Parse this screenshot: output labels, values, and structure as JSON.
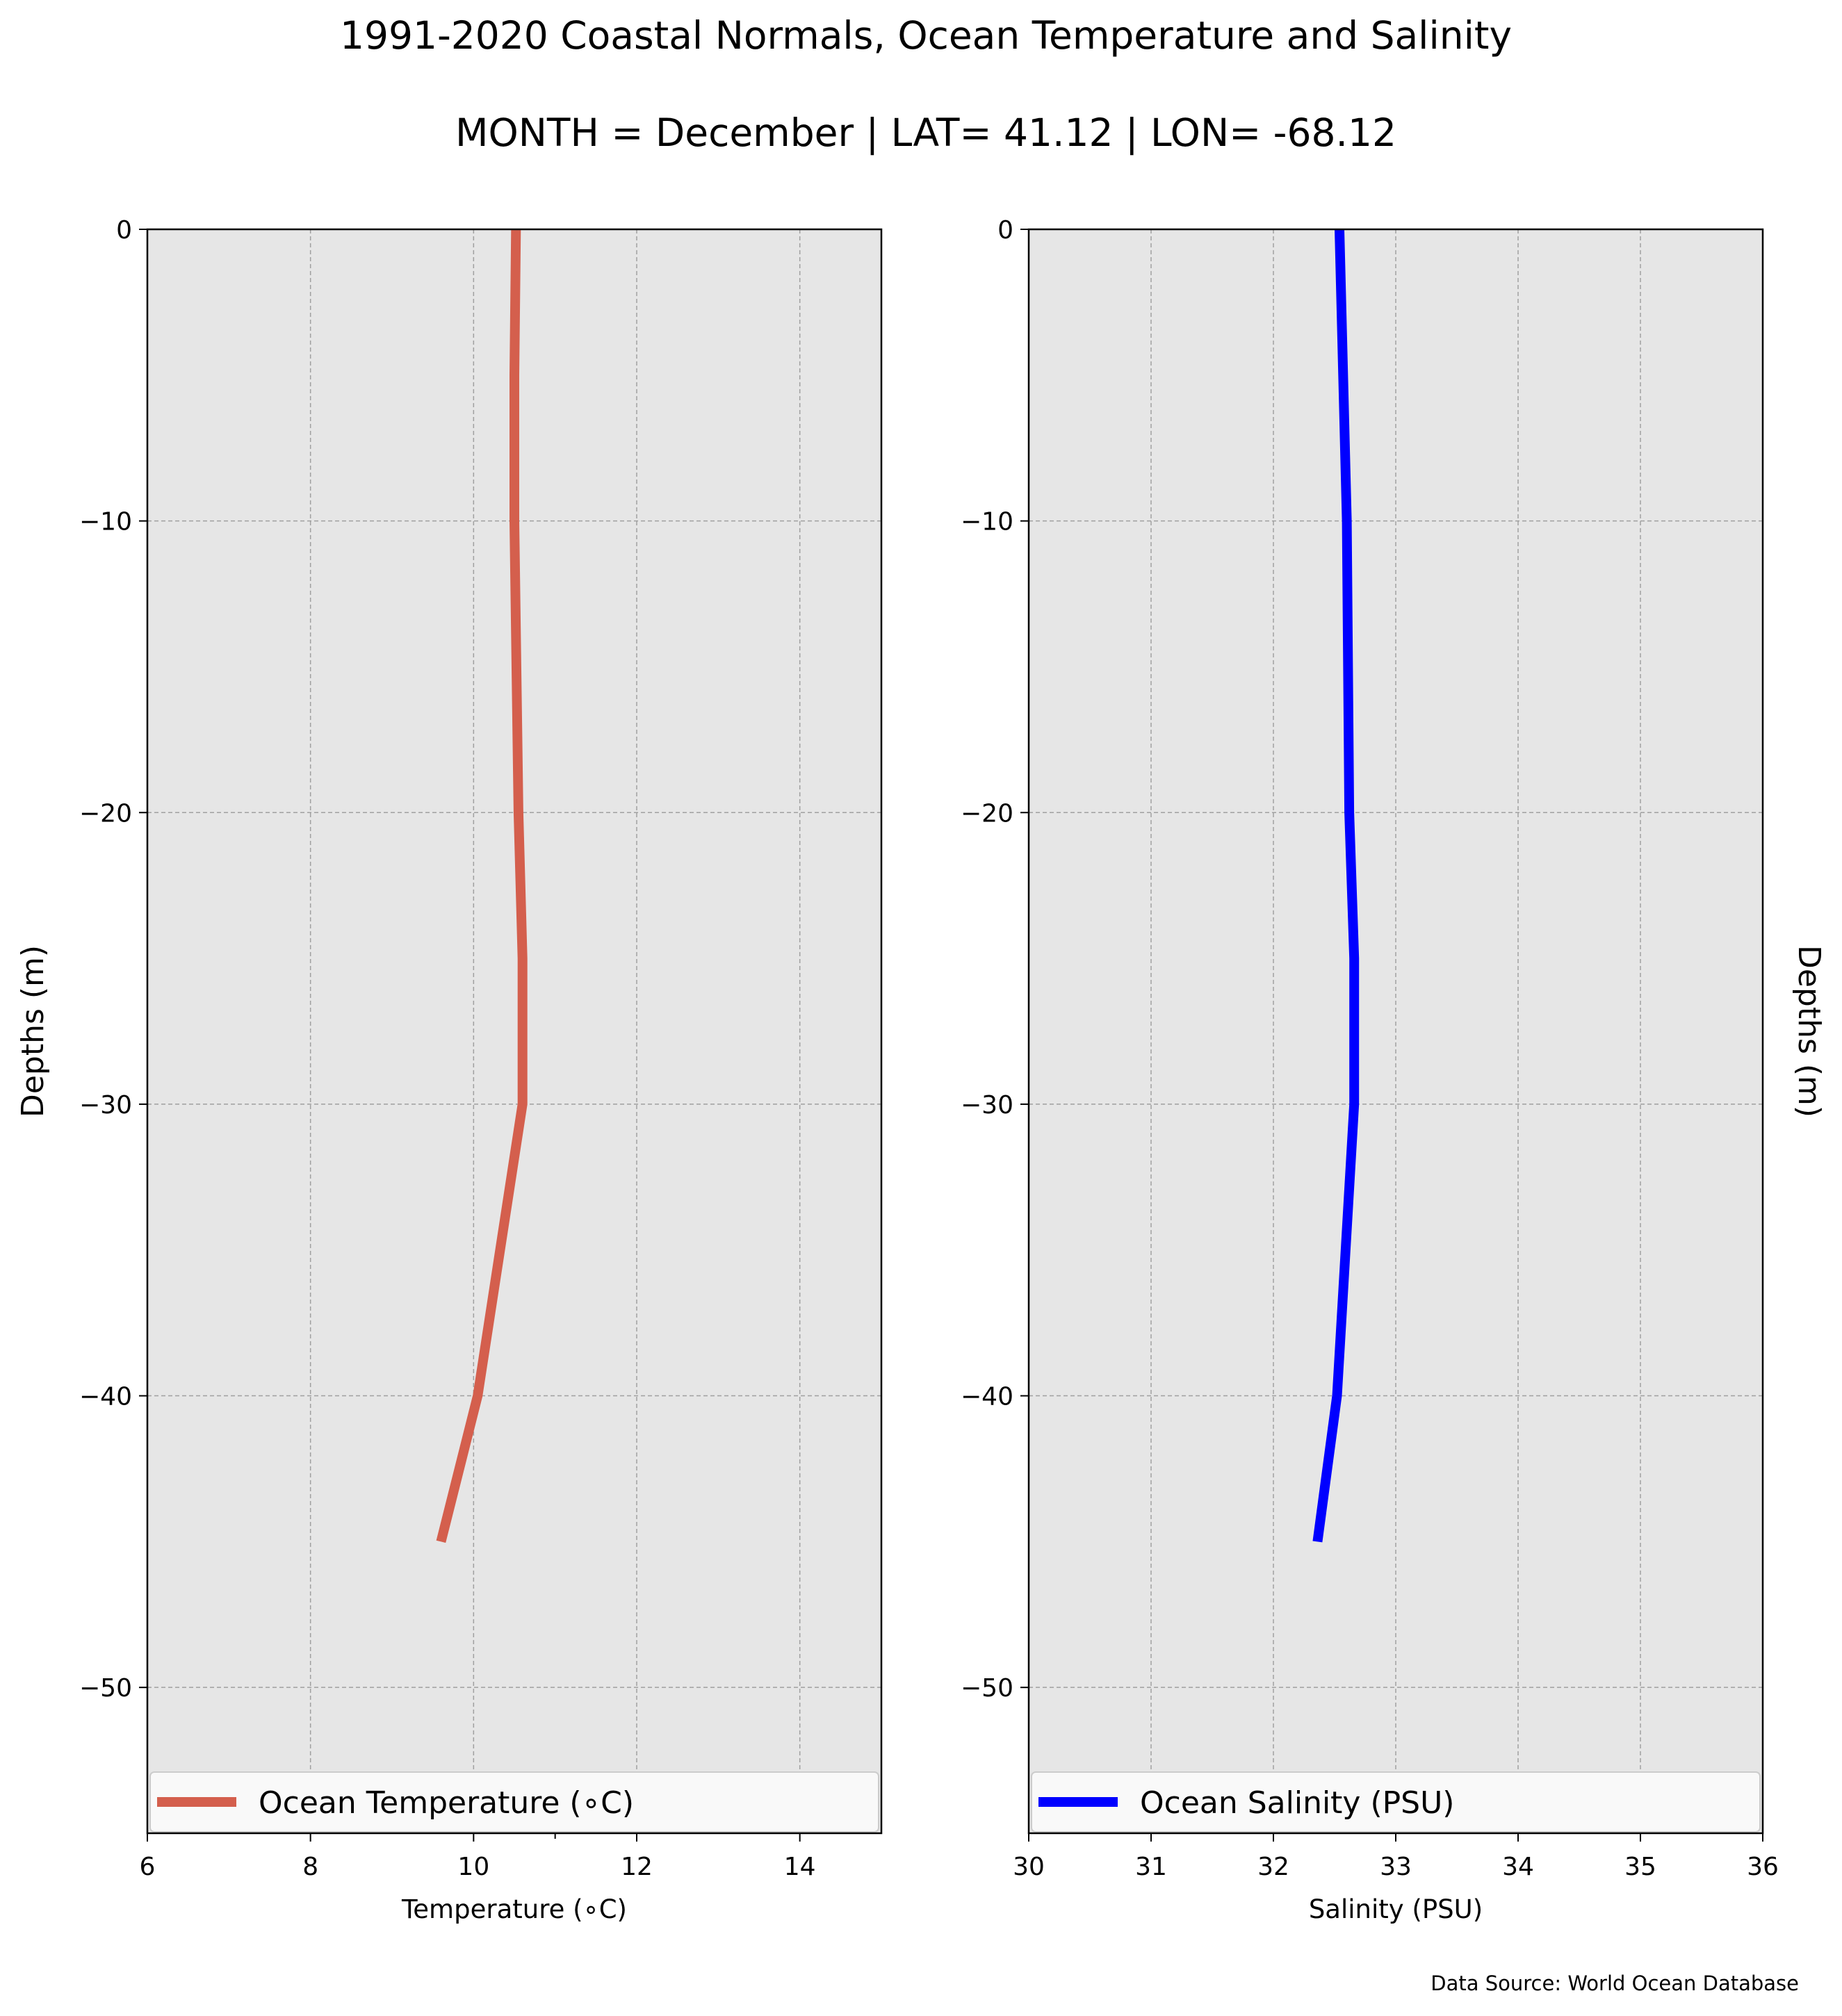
{
  "figure": {
    "title": "1991-2020 Coastal Normals, Ocean Temperature and Salinity",
    "subtitle": "MONTH = December | LAT= 41.12 | LON= -68.12",
    "source": "Data Source: World Ocean Database",
    "background": "#e6e6e6",
    "grid_color": "#a0a0a0"
  },
  "chart_data": [
    {
      "type": "line",
      "xlabel": "Temperature ($^\\circ$C)",
      "xlabel_display": "Temperature (∘C)",
      "ylabel": "Depths (m)",
      "xlim": [
        6,
        15
      ],
      "ylim": [
        -55,
        0
      ],
      "x_ticks": [
        6,
        8,
        10,
        12,
        14
      ],
      "x_tick_labels": [
        "6",
        "8",
        "10",
        "12",
        "14"
      ],
      "y_ticks": [
        0,
        -10,
        -20,
        -30,
        -40,
        -50
      ],
      "y_tick_labels": [
        "0",
        "−10",
        "−20",
        "−30",
        "−40",
        "−50"
      ],
      "grid": true,
      "legend_position": "bottom",
      "series": [
        {
          "name": "Ocean Temperature ($^\\circ$C)",
          "name_display": "Ocean Temperature (∘C)",
          "color": "#d45f4d",
          "x": [
            10.52,
            10.5,
            10.5,
            10.55,
            10.6,
            10.6,
            10.05,
            9.6
          ],
          "y": [
            0,
            -5,
            -10,
            -20,
            -25,
            -30,
            -40,
            -45
          ]
        }
      ]
    },
    {
      "type": "line",
      "xlabel": "Salinity (PSU)",
      "ylabel": "Depths (m)",
      "xlim": [
        30,
        36
      ],
      "ylim": [
        -55,
        0
      ],
      "x_ticks": [
        30,
        31,
        32,
        33,
        34,
        35,
        36
      ],
      "x_tick_labels": [
        "30",
        "31",
        "32",
        "33",
        "34",
        "35",
        "36"
      ],
      "y_ticks": [
        0,
        -10,
        -20,
        -30,
        -40,
        -50
      ],
      "y_tick_labels": [
        "0",
        "−10",
        "−20",
        "−30",
        "−40",
        "−50"
      ],
      "grid": true,
      "legend_position": "bottom",
      "series": [
        {
          "name": "Ocean Salinity (PSU)",
          "color": "#0000ff",
          "x": [
            32.54,
            32.57,
            32.6,
            32.62,
            32.66,
            32.66,
            32.52,
            32.36
          ],
          "y": [
            0,
            -5,
            -10,
            -20,
            -25,
            -30,
            -40,
            -45
          ]
        }
      ]
    }
  ]
}
